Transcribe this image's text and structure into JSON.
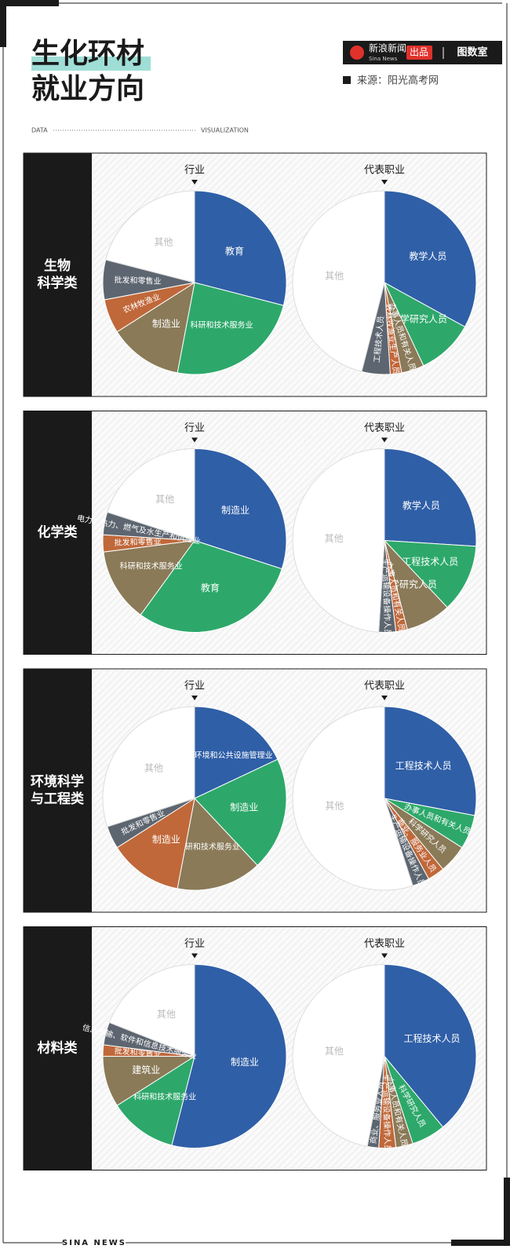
{
  "header": {
    "title": [
      "生化环材",
      "就业方向"
    ],
    "brand": "新浪新闻",
    "brand_en": "Sina News",
    "badge": "出品",
    "studio": "图数室",
    "source": "来源：阳光高考网",
    "left_tag": "DATA",
    "right_tag": "VISUALIZATION",
    "footer": "SINA NEWS"
  },
  "panels": [
    {
      "label": [
        "生物",
        "科学类"
      ]
    },
    {
      "label": [
        "化学类"
      ]
    },
    {
      "label": [
        "环境科学",
        "与工程类"
      ]
    },
    {
      "label": [
        "材料类"
      ]
    }
  ],
  "chart_data": [
    {
      "type": "pie",
      "title": "行业",
      "categories": [
        "教育",
        "科研和技术服务业",
        "制造业",
        "农林牧渔业",
        "批发和零售业",
        "其他"
      ],
      "values": [
        29,
        24,
        13,
        6,
        7,
        21
      ],
      "colors": [
        "#2f5fa7",
        "#2da86a",
        "#8a7a58",
        "#c0683a",
        "#5d6670",
        "#ffffff"
      ]
    },
    {
      "type": "pie",
      "title": "代表职业",
      "categories": [
        "教学人员",
        "科学研究人员",
        "办事人员和有关人员",
        "农林牧渔业生产人员",
        "工程技术人员",
        "其他"
      ],
      "values": [
        33,
        10,
        4,
        2,
        5,
        46
      ],
      "colors": [
        "#2f5fa7",
        "#2da86a",
        "#8a7a58",
        "#c0683a",
        "#5d6670",
        "#ffffff"
      ]
    },
    {
      "type": "pie",
      "title": "行业",
      "categories": [
        "制造业",
        "教育",
        "科研和技术服务业",
        "批发和零售业",
        "电力、热力、燃气及水生产和供应业",
        "其他"
      ],
      "values": [
        30,
        30,
        13,
        3,
        4,
        20
      ],
      "colors": [
        "#2f5fa7",
        "#2da86a",
        "#8a7a58",
        "#c0683a",
        "#5d6670",
        "#ffffff"
      ]
    },
    {
      "type": "pie",
      "title": "代表职业",
      "categories": [
        "教学人员",
        "工程技术人员",
        "科学研究人员",
        "办事人员和有关人员",
        "生产运输设备操作人员",
        "其他"
      ],
      "values": [
        26,
        12,
        8,
        2,
        3,
        49
      ],
      "colors": [
        "#2f5fa7",
        "#2da86a",
        "#8a7a58",
        "#c0683a",
        "#5d6670",
        "#ffffff"
      ]
    },
    {
      "type": "pie",
      "title": "行业",
      "categories": [
        "水利、环境和公共设施管理业",
        "制造业",
        "科研和技术服务业",
        "制造业",
        "批发和零售业",
        "其他"
      ],
      "values": [
        18,
        20,
        15,
        13,
        4,
        30
      ],
      "colors": [
        "#2f5fa7",
        "#2da86a",
        "#8a7a58",
        "#c0683a",
        "#5d6670",
        "#ffffff"
      ]
    },
    {
      "type": "pie",
      "title": "代表职业",
      "categories": [
        "工程技术人员",
        "办事人员和有关人员",
        "科学研究人员",
        "商业、服务业人员",
        "生产运输设备操作人员",
        "其他"
      ],
      "values": [
        28,
        6,
        5,
        3,
        3,
        55
      ],
      "colors": [
        "#2f5fa7",
        "#2da86a",
        "#8a7a58",
        "#c0683a",
        "#5d6670",
        "#ffffff"
      ]
    },
    {
      "type": "pie",
      "title": "行业",
      "categories": [
        "制造业",
        "科研和技术服务业",
        "建筑业",
        "批发和零售业",
        "信息传输、软件和信息技术服务业",
        "其他"
      ],
      "values": [
        54,
        12,
        9,
        2,
        4,
        19
      ],
      "colors": [
        "#2f5fa7",
        "#2da86a",
        "#8a7a58",
        "#c0683a",
        "#5d6670",
        "#ffffff"
      ]
    },
    {
      "type": "pie",
      "title": "代表职业",
      "categories": [
        "工程技术人员",
        "科学研究人员",
        "办事人员和有关人员",
        "生产运输设备操作人员",
        "商业、服务业人员",
        "其他"
      ],
      "values": [
        39,
        6,
        3,
        3,
        2,
        47
      ],
      "colors": [
        "#2f5fa7",
        "#2da86a",
        "#8a7a58",
        "#c0683a",
        "#5d6670",
        "#ffffff"
      ]
    }
  ]
}
